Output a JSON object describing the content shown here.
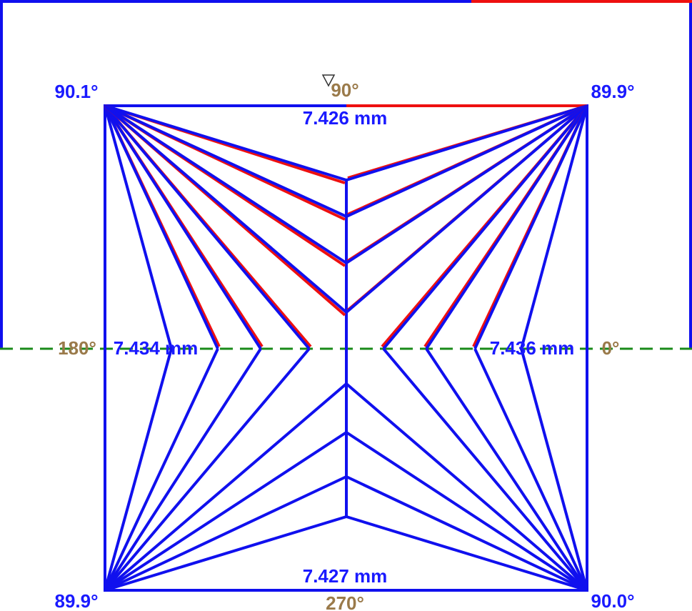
{
  "corners": {
    "top_left": "90.1°",
    "top_right": "89.9°",
    "bottom_left": "89.9°",
    "bottom_right": "90.0°"
  },
  "axes": {
    "top": "90°",
    "left": "180°",
    "right": "0°",
    "bottom": "270°"
  },
  "edges": {
    "top": "7.426 mm",
    "left": "7.434 mm",
    "right": "7.436 mm",
    "bottom": "7.427 mm"
  }
}
